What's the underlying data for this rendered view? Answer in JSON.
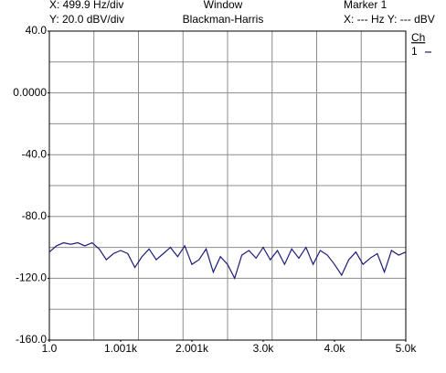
{
  "header": {
    "x_scale": "X: 499.9 Hz/div",
    "y_scale": "Y: 20.0 dBV/div",
    "window_label": "Window",
    "window_name": "Blackman-Harris",
    "marker_label": "Marker 1",
    "marker_readout": "X: --- Hz Y: --- dBV",
    "legend_title": "Ch"
  },
  "chart_data": {
    "type": "line",
    "x": [
      1,
      100,
      200,
      300,
      400,
      500,
      600,
      700,
      800,
      900,
      1000,
      1100,
      1200,
      1300,
      1400,
      1500,
      1600,
      1700,
      1800,
      1900,
      2000,
      2100,
      2200,
      2300,
      2400,
      2500,
      2600,
      2700,
      2800,
      2900,
      3000,
      3100,
      3200,
      3300,
      3400,
      3500,
      3600,
      3700,
      3800,
      3900,
      4000,
      4100,
      4200,
      4300,
      4400,
      4500,
      4600,
      4700,
      4800,
      4900,
      5000
    ],
    "series": [
      {
        "name": "1",
        "color": "#1c1c7a",
        "values": [
          -103,
          -99,
          -97,
          -98,
          -97,
          -99,
          -97,
          -101,
          -108,
          -104,
          -102,
          -104,
          -113,
          -106,
          -101,
          -108,
          -104,
          -100,
          -106,
          -99,
          -111,
          -108,
          -101,
          -116,
          -106,
          -111,
          -120,
          -105,
          -102,
          -107,
          -100,
          -108,
          -102,
          -111,
          -101,
          -107,
          -100,
          -111,
          -102,
          -105,
          -111,
          -118,
          -108,
          -103,
          -111,
          -107,
          -104,
          -116,
          -102,
          -105,
          -103
        ]
      }
    ],
    "xlim": [
      1,
      5000
    ],
    "xticks": [
      {
        "value": 1,
        "label": "1.0"
      },
      {
        "value": 1001,
        "label": "1.001k"
      },
      {
        "value": 2001,
        "label": "2.001k"
      },
      {
        "value": 3000,
        "label": "3.0k"
      },
      {
        "value": 4000,
        "label": "4.0k"
      },
      {
        "value": 5000,
        "label": "5.0k"
      }
    ],
    "ylim": [
      -160,
      40
    ],
    "yticks": [
      {
        "value": 40,
        "label": "40.0"
      },
      {
        "value": 0,
        "label": "0.0000"
      },
      {
        "value": -40,
        "label": "-40.0"
      },
      {
        "value": -80,
        "label": "-80.0"
      },
      {
        "value": -120,
        "label": "-120.0"
      },
      {
        "value": -160,
        "label": "-160.0"
      }
    ],
    "grid": true
  }
}
